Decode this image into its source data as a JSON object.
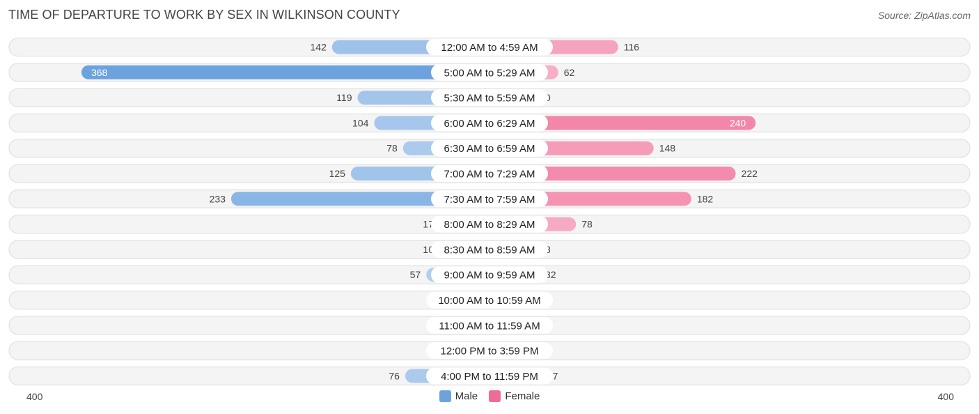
{
  "title": "TIME OF DEPARTURE TO WORK BY SEX IN WILKINSON COUNTY",
  "source": "Source: ZipAtlas.com",
  "colors": {
    "male": "#6ca3de",
    "female": "#f06b95"
  },
  "chart_data": {
    "type": "bar",
    "orientation": "horizontal-diverging",
    "title": "TIME OF DEPARTURE TO WORK BY SEX IN WILKINSON COUNTY",
    "categories": [
      "12:00 AM to 4:59 AM",
      "5:00 AM to 5:29 AM",
      "5:30 AM to 5:59 AM",
      "6:00 AM to 6:29 AM",
      "6:30 AM to 6:59 AM",
      "7:00 AM to 7:29 AM",
      "7:30 AM to 7:59 AM",
      "8:00 AM to 8:29 AM",
      "8:30 AM to 8:59 AM",
      "9:00 AM to 9:59 AM",
      "10:00 AM to 10:59 AM",
      "11:00 AM to 11:59 AM",
      "12:00 PM to 3:59 PM",
      "4:00 PM to 11:59 PM"
    ],
    "series": [
      {
        "name": "Male",
        "values": [
          142,
          368,
          119,
          104,
          78,
          125,
          233,
          17,
          10,
          57,
          0,
          0,
          0,
          76
        ]
      },
      {
        "name": "Female",
        "values": [
          116,
          62,
          0,
          240,
          148,
          222,
          182,
          78,
          8,
          32,
          0,
          0,
          0,
          47
        ]
      }
    ],
    "xlim": [
      -400,
      400
    ],
    "axis_labels": {
      "left": "400",
      "right": "400"
    },
    "legend": [
      "Male",
      "Female"
    ],
    "legend_position": "bottom-center"
  }
}
